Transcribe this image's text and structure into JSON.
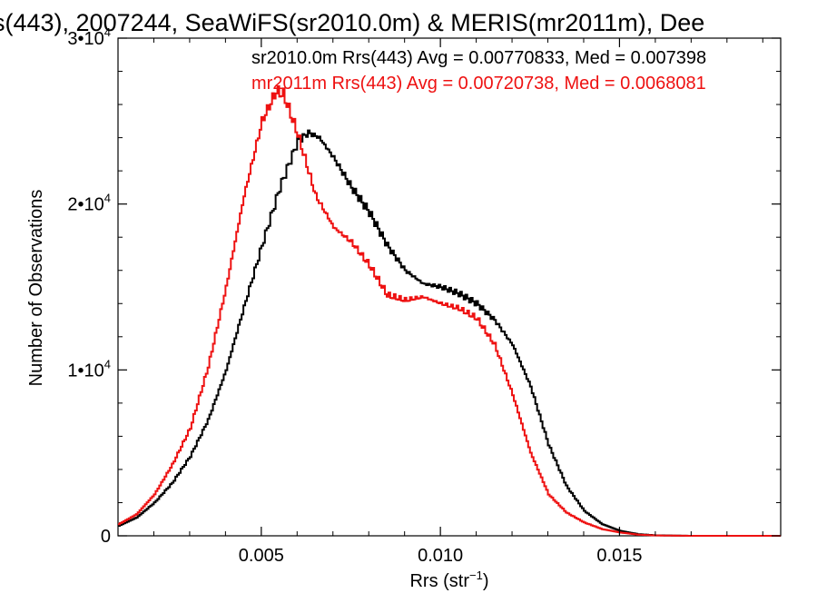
{
  "chart_data": {
    "type": "line",
    "title": "s(443), 2007244, SeaWiFS(sr2010.0m) & MERIS(mr2011m), Dee",
    "xlabel": "Rrs (str",
    "xlabel_sup": "−1",
    "xlabel_end": ")",
    "ylabel": "Number of Observations",
    "xlim": [
      0.001,
      0.0195
    ],
    "ylim": [
      0,
      30000
    ],
    "x_ticks": [
      {
        "value": 0.005,
        "label": "0.005"
      },
      {
        "value": 0.01,
        "label": "0.010"
      },
      {
        "value": 0.015,
        "label": "0.015"
      }
    ],
    "y_ticks": [
      {
        "value": 0,
        "label": "0",
        "sup": ""
      },
      {
        "value": 10000,
        "label": "1•10",
        "sup": "4"
      },
      {
        "value": 20000,
        "label": "2•10",
        "sup": "4"
      },
      {
        "value": 30000,
        "label": "3•10",
        "sup": "4"
      }
    ],
    "legend_position": "top-right",
    "grid": false,
    "series": [
      {
        "name": "sr2010.0m",
        "label": "sr2010.0m Rrs(443) Avg = 0.00770833, Med = 0.007398",
        "color": "#000000",
        "points": [
          [
            0.001,
            600
          ],
          [
            0.0015,
            1100
          ],
          [
            0.002,
            2000
          ],
          [
            0.0025,
            3200
          ],
          [
            0.003,
            4800
          ],
          [
            0.0035,
            7000
          ],
          [
            0.004,
            10000
          ],
          [
            0.0045,
            13800
          ],
          [
            0.005,
            17500
          ],
          [
            0.0055,
            21000
          ],
          [
            0.006,
            23800
          ],
          [
            0.0063,
            24300
          ],
          [
            0.0066,
            24000
          ],
          [
            0.007,
            22800
          ],
          [
            0.0075,
            21000
          ],
          [
            0.008,
            19500
          ],
          [
            0.0085,
            17500
          ],
          [
            0.009,
            16000
          ],
          [
            0.0095,
            15200
          ],
          [
            0.01,
            15000
          ],
          [
            0.0105,
            14600
          ],
          [
            0.011,
            14000
          ],
          [
            0.0115,
            13000
          ],
          [
            0.012,
            11500
          ],
          [
            0.0125,
            9000
          ],
          [
            0.013,
            5500
          ],
          [
            0.0135,
            3000
          ],
          [
            0.014,
            1500
          ],
          [
            0.0145,
            700
          ],
          [
            0.015,
            300
          ],
          [
            0.0155,
            100
          ],
          [
            0.016,
            30
          ],
          [
            0.017,
            0
          ],
          [
            0.0195,
            0
          ]
        ]
      },
      {
        "name": "mr2011m",
        "label": "mr2011m Rrs(443) Avg = 0.00720738, Med = 0.0068081",
        "color": "#ee1111",
        "points": [
          [
            0.001,
            700
          ],
          [
            0.0015,
            1300
          ],
          [
            0.002,
            2500
          ],
          [
            0.0025,
            4300
          ],
          [
            0.003,
            6500
          ],
          [
            0.0035,
            10200
          ],
          [
            0.004,
            15000
          ],
          [
            0.0045,
            20500
          ],
          [
            0.005,
            25000
          ],
          [
            0.0054,
            26800
          ],
          [
            0.0056,
            26600
          ],
          [
            0.006,
            24200
          ],
          [
            0.0065,
            20500
          ],
          [
            0.007,
            18600
          ],
          [
            0.0075,
            17700
          ],
          [
            0.008,
            16300
          ],
          [
            0.0085,
            14500
          ],
          [
            0.009,
            14200
          ],
          [
            0.0095,
            14400
          ],
          [
            0.01,
            14000
          ],
          [
            0.0105,
            13700
          ],
          [
            0.011,
            13100
          ],
          [
            0.0115,
            11500
          ],
          [
            0.012,
            8500
          ],
          [
            0.0125,
            5000
          ],
          [
            0.013,
            2500
          ],
          [
            0.0135,
            1400
          ],
          [
            0.014,
            800
          ],
          [
            0.0145,
            400
          ],
          [
            0.015,
            200
          ],
          [
            0.0155,
            70
          ],
          [
            0.016,
            20
          ],
          [
            0.017,
            0
          ],
          [
            0.0195,
            0
          ]
        ]
      }
    ]
  }
}
